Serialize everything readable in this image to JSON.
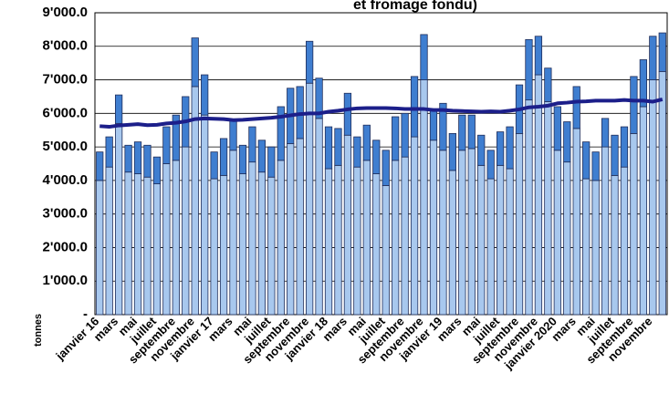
{
  "chart_data": {
    "type": "bar",
    "stacked": true,
    "title": "et fromage fondu)",
    "y_label": "tonnes",
    "categories": [
      "janvier 16",
      null,
      "mars",
      null,
      "mai",
      null,
      "juillet",
      null,
      "septembre",
      null,
      "novembre",
      null,
      "janvier 17",
      null,
      "mars",
      null,
      "mai",
      null,
      "juillet",
      null,
      "septembre",
      null,
      "novembre",
      null,
      "janvier 18",
      null,
      "mars",
      null,
      "mai",
      null,
      "juillet",
      null,
      "septembre",
      null,
      "novembre",
      null,
      "janvier 19",
      null,
      "mars",
      null,
      "mai",
      null,
      "juillet",
      null,
      "septembre",
      null,
      "novembre",
      null,
      "janvier 2020",
      null,
      "mars",
      null,
      "mai",
      null,
      "juillet",
      null,
      "septembre",
      null,
      "novembre",
      null
    ],
    "series": [
      {
        "type": "bar",
        "color": "#a8c8ee",
        "values": [
          4000,
          4400,
          5700,
          4250,
          4200,
          4100,
          3900,
          4500,
          4600,
          5000,
          6800,
          5950,
          4050,
          4150,
          4900,
          4200,
          4550,
          4250,
          4100,
          4600,
          5100,
          5250,
          6900,
          5850,
          4350,
          4450,
          5350,
          4400,
          4600,
          4200,
          3850,
          4600,
          4700,
          5300,
          7000,
          5200,
          4900,
          4300,
          4900,
          4950,
          4450,
          4050,
          4450,
          4350,
          5400,
          6400,
          7150,
          6350,
          4900,
          4550,
          5550,
          4050,
          4000,
          5000,
          4150,
          4400,
          5400,
          6200,
          7000,
          7250
        ]
      },
      {
        "type": "bar",
        "color": "#3f7ed0",
        "values": [
          850,
          900,
          850,
          800,
          950,
          950,
          800,
          1100,
          1350,
          1500,
          1450,
          1200,
          800,
          1100,
          900,
          850,
          1050,
          950,
          900,
          1600,
          1650,
          1550,
          1250,
          1200,
          1250,
          1100,
          1250,
          900,
          1050,
          1000,
          1050,
          1300,
          1300,
          1800,
          1350,
          900,
          1400,
          1100,
          1050,
          1000,
          900,
          850,
          1000,
          1250,
          1450,
          1800,
          1150,
          1000,
          1300,
          1200,
          1250,
          1100,
          850,
          850,
          1200,
          1200,
          1700,
          1400,
          1300,
          1150
        ]
      },
      {
        "type": "line",
        "color": "#1c1f8a",
        "values": [
          5620,
          5600,
          5640,
          5660,
          5680,
          5650,
          5660,
          5700,
          5720,
          5760,
          5830,
          5850,
          5840,
          5830,
          5800,
          5810,
          5830,
          5850,
          5870,
          5900,
          5940,
          5980,
          6000,
          6000,
          6050,
          6080,
          6120,
          6150,
          6160,
          6160,
          6160,
          6150,
          6130,
          6130,
          6130,
          6100,
          6100,
          6080,
          6070,
          6060,
          6050,
          6060,
          6050,
          6080,
          6120,
          6180,
          6200,
          6230,
          6300,
          6320,
          6350,
          6360,
          6380,
          6380,
          6380,
          6400,
          6380,
          6380,
          6350,
          6420
        ]
      }
    ],
    "ylim": [
      0,
      9000
    ],
    "yticks": [
      {
        "value": 0,
        "label": "-"
      },
      {
        "value": 1000,
        "label": "1'000.0"
      },
      {
        "value": 2000,
        "label": "2'000.0"
      },
      {
        "value": 3000,
        "label": "3'000.0"
      },
      {
        "value": 4000,
        "label": "4'000.0"
      },
      {
        "value": 5000,
        "label": "5'000.0"
      },
      {
        "value": 6000,
        "label": "6'000.0"
      },
      {
        "value": 7000,
        "label": "7'000.0"
      },
      {
        "value": 8000,
        "label": "8'000.0"
      },
      {
        "value": 9000,
        "label": "9'000.0"
      }
    ],
    "grid": true
  }
}
